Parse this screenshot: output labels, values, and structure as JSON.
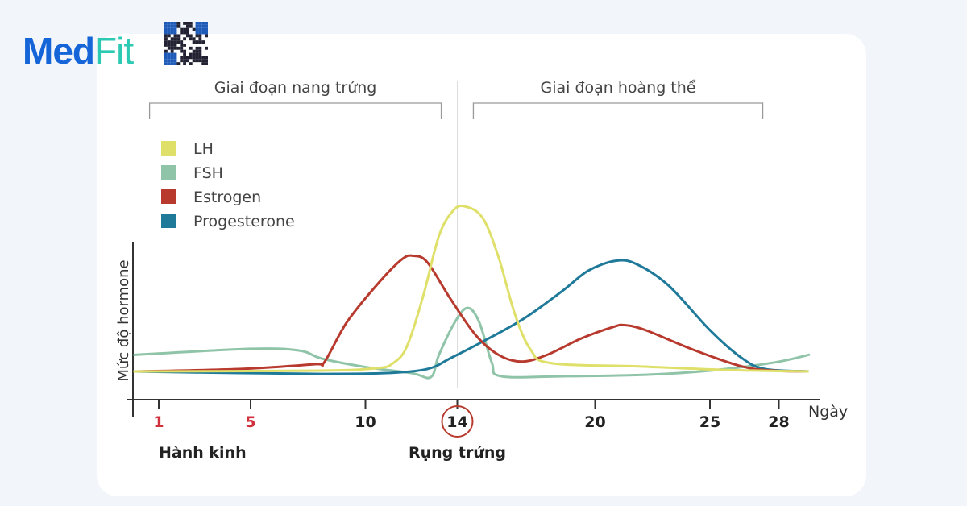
{
  "brand": {
    "part1": "Med",
    "part2": "Fit",
    "qr_text": "Medfit"
  },
  "chart_data": {
    "type": "line",
    "title": "",
    "xlabel": "Ngày",
    "ylabel": "Mức độ hormone",
    "xlim": [
      -0.1,
      29.8
    ],
    "ylim": [
      -5,
      100
    ],
    "xticks": [
      {
        "value": 1,
        "label": "1",
        "highlight": "red"
      },
      {
        "value": 5,
        "label": "5",
        "highlight": "red"
      },
      {
        "value": 10,
        "label": "10"
      },
      {
        "value": 14,
        "label": "14",
        "highlight": "circle"
      },
      {
        "value": 20,
        "label": "20"
      },
      {
        "value": 25,
        "label": "25"
      },
      {
        "value": 28,
        "label": "28"
      }
    ],
    "annotations": [
      {
        "text": "Hành kinh",
        "x": 1
      },
      {
        "text": "Rụng trứng",
        "x": 14
      }
    ],
    "phases": [
      {
        "label": "Giai đoạn nang trứng",
        "from": 0.6,
        "to": 13.3
      },
      {
        "label": "Giai đoạn hoàng thể",
        "from": 14.7,
        "to": 27.3
      }
    ],
    "ovulation_line": 14,
    "legend_position": "top-left",
    "series": [
      {
        "name": "LH",
        "color": "#dfe06a",
        "points": [
          [
            -0.1,
            0
          ],
          [
            8,
            0.5
          ],
          [
            10.5,
            2
          ],
          [
            11.2,
            5
          ],
          [
            11.8,
            15
          ],
          [
            12.5,
            45
          ],
          [
            13.2,
            82
          ],
          [
            13.8,
            97
          ],
          [
            14.3,
            100
          ],
          [
            15.1,
            93
          ],
          [
            15.8,
            69
          ],
          [
            16.5,
            35
          ],
          [
            17.2,
            13
          ],
          [
            18.1,
            5
          ],
          [
            22,
            3
          ],
          [
            25.5,
            1
          ],
          [
            29.3,
            0
          ]
        ]
      },
      {
        "name": "FSH",
        "color": "#8fc4a8",
        "points": [
          [
            -0.1,
            10
          ],
          [
            5,
            13.7
          ],
          [
            7.1,
            12.7
          ],
          [
            8.1,
            7.8
          ],
          [
            9.9,
            2.9
          ],
          [
            12,
            -1
          ],
          [
            12.85,
            -3.4
          ],
          [
            13.2,
            10
          ],
          [
            13.9,
            30
          ],
          [
            14.45,
            38.5
          ],
          [
            14.95,
            30
          ],
          [
            15.5,
            5.4
          ],
          [
            15.9,
            -2.9
          ],
          [
            18.6,
            -2.9
          ],
          [
            22.2,
            -2
          ],
          [
            25,
            0.5
          ],
          [
            27.8,
            5.4
          ],
          [
            29.35,
            10.2
          ]
        ]
      },
      {
        "name": "Estrogen",
        "color": "#b83a2e",
        "points": [
          [
            -0.1,
            0
          ],
          [
            4.6,
            1.5
          ],
          [
            7.8,
            4.4
          ],
          [
            8.2,
            5.4
          ],
          [
            9.2,
            30
          ],
          [
            10.6,
            54
          ],
          [
            11.6,
            68
          ],
          [
            12.1,
            70
          ],
          [
            12.7,
            66
          ],
          [
            13.7,
            44
          ],
          [
            14.8,
            22
          ],
          [
            15.8,
            10
          ],
          [
            16.8,
            6
          ],
          [
            17.9,
            10
          ],
          [
            19.4,
            20
          ],
          [
            20.8,
            27
          ],
          [
            21.3,
            28
          ],
          [
            22.2,
            25
          ],
          [
            24.3,
            13
          ],
          [
            26.4,
            3
          ],
          [
            27.8,
            0.5
          ],
          [
            29.3,
            0
          ]
        ]
      },
      {
        "name": "Progesterone",
        "color": "#1f7a9a",
        "points": [
          [
            -0.1,
            0
          ],
          [
            4.6,
            -1
          ],
          [
            8.1,
            -1.5
          ],
          [
            10.9,
            -1
          ],
          [
            12.7,
            1.5
          ],
          [
            13.7,
            8
          ],
          [
            15.1,
            18
          ],
          [
            16.9,
            32
          ],
          [
            18.6,
            49
          ],
          [
            19.7,
            61
          ],
          [
            20.9,
            67
          ],
          [
            21.8,
            65
          ],
          [
            23.2,
            52
          ],
          [
            25,
            25
          ],
          [
            26.4,
            8
          ],
          [
            27.4,
            1.5
          ],
          [
            29.3,
            0
          ]
        ]
      }
    ]
  }
}
